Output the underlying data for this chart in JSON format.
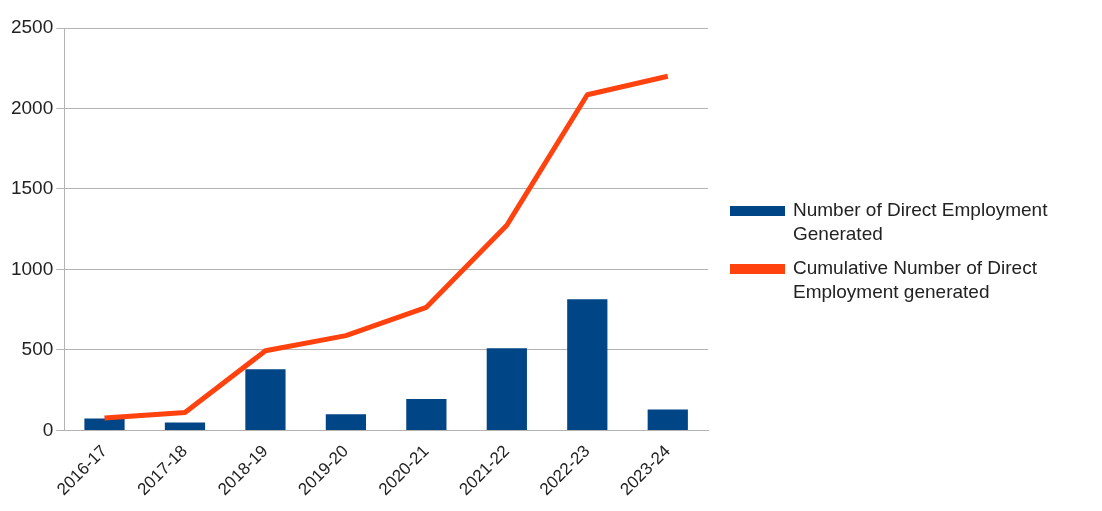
{
  "chart_data": {
    "type": "bar",
    "categories": [
      "2016-17",
      "2017-18",
      "2018-19",
      "2019-20",
      "2020-21",
      "2021-22",
      "2022-23",
      "2023-24"
    ],
    "series": [
      {
        "name": "Number of Direct Employment Generated",
        "color": "#004586",
        "values": [
          75,
          50,
          380,
          100,
          195,
          510,
          815,
          130
        ]
      },
      {
        "name": "Cumulative Number of Direct Employment generated",
        "type": "line",
        "color": "#ff420e",
        "values": [
          78,
          112,
          495,
          589,
          765,
          1275,
          2085,
          2200
        ]
      }
    ],
    "ylim": [
      0,
      2500
    ],
    "yticks": [
      0,
      500,
      1000,
      1500,
      2000,
      2500
    ],
    "grid": "y",
    "legend": "right",
    "marker": "none"
  }
}
